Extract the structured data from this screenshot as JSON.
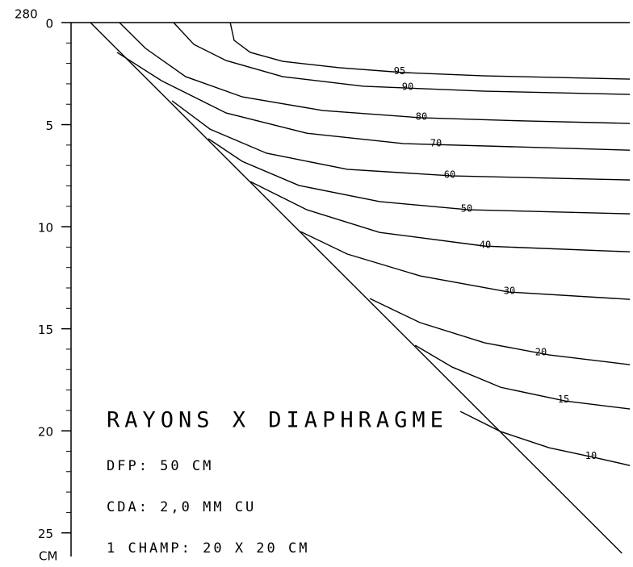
{
  "chart_data": {
    "type": "line",
    "title": "RAYONS X DIAPHRAGME",
    "annotations": [
      "DFP: 50 CM",
      "CDA: 2,0 MM CU",
      "1 CHAMP: 20 X 20 CM"
    ],
    "top_label": "280",
    "y_unit": "CM",
    "xlim": [
      0,
      27.5
    ],
    "ylim": [
      0,
      26
    ],
    "yticks": [
      0,
      5,
      10,
      15,
      20,
      25
    ],
    "color": "#000000",
    "edge": {
      "x": [
        0.95,
        26.96
      ],
      "values": [
        0,
        26.0
      ]
    },
    "series": [
      {
        "name": "95",
        "x": [
          7.79,
          7.98,
          8.77,
          10.36,
          13.12,
          16.28,
          20.24,
          27.35
        ],
        "values": [
          0,
          0.87,
          1.46,
          1.9,
          2.21,
          2.45,
          2.61,
          2.77
        ]
      },
      {
        "name": "90",
        "x": [
          5.02,
          6.01,
          7.59,
          10.36,
          14.31,
          20.24,
          27.35
        ],
        "values": [
          0,
          1.07,
          1.86,
          2.65,
          3.12,
          3.36,
          3.52
        ]
      },
      {
        "name": "80",
        "x": [
          2.37,
          3.64,
          5.61,
          8.38,
          12.33,
          17.08,
          22.21,
          27.35
        ],
        "values": [
          0,
          1.26,
          2.65,
          3.64,
          4.31,
          4.66,
          4.82,
          4.94
        ]
      },
      {
        "name": "70",
        "x": [
          2.25,
          4.43,
          7.59,
          11.54,
          16.28,
          27.35
        ],
        "values": [
          1.46,
          2.85,
          4.43,
          5.42,
          5.93,
          6.25
        ]
      },
      {
        "name": "60",
        "x": [
          4.94,
          6.8,
          9.57,
          13.52,
          18.66,
          27.35
        ],
        "values": [
          3.83,
          5.22,
          6.4,
          7.19,
          7.51,
          7.71
        ]
      },
      {
        "name": "50",
        "x": [
          6.72,
          8.38,
          11.15,
          15.1,
          19.45,
          27.35
        ],
        "values": [
          5.69,
          6.8,
          7.98,
          8.77,
          9.17,
          9.37
        ]
      },
      {
        "name": "40",
        "x": [
          8.77,
          11.54,
          15.1,
          20.24,
          27.35
        ],
        "values": [
          7.79,
          9.17,
          10.28,
          10.95,
          11.23
        ]
      },
      {
        "name": "30",
        "x": [
          11.23,
          13.52,
          17.08,
          21.42,
          27.35
        ],
        "values": [
          10.24,
          11.34,
          12.41,
          13.2,
          13.56
        ]
      },
      {
        "name": "20",
        "x": [
          14.62,
          17.08,
          20.24,
          23.4,
          27.35
        ],
        "values": [
          13.52,
          14.7,
          15.69,
          16.28,
          16.76
        ]
      },
      {
        "name": "15",
        "x": [
          16.84,
          18.66,
          21.03,
          24.19,
          27.35
        ],
        "values": [
          15.81,
          16.88,
          17.87,
          18.54,
          18.93
        ]
      },
      {
        "name": "10",
        "x": [
          19.05,
          21.03,
          23.4,
          25.77,
          27.35
        ],
        "values": [
          19.05,
          20.04,
          20.83,
          21.34,
          21.7
        ]
      }
    ]
  }
}
